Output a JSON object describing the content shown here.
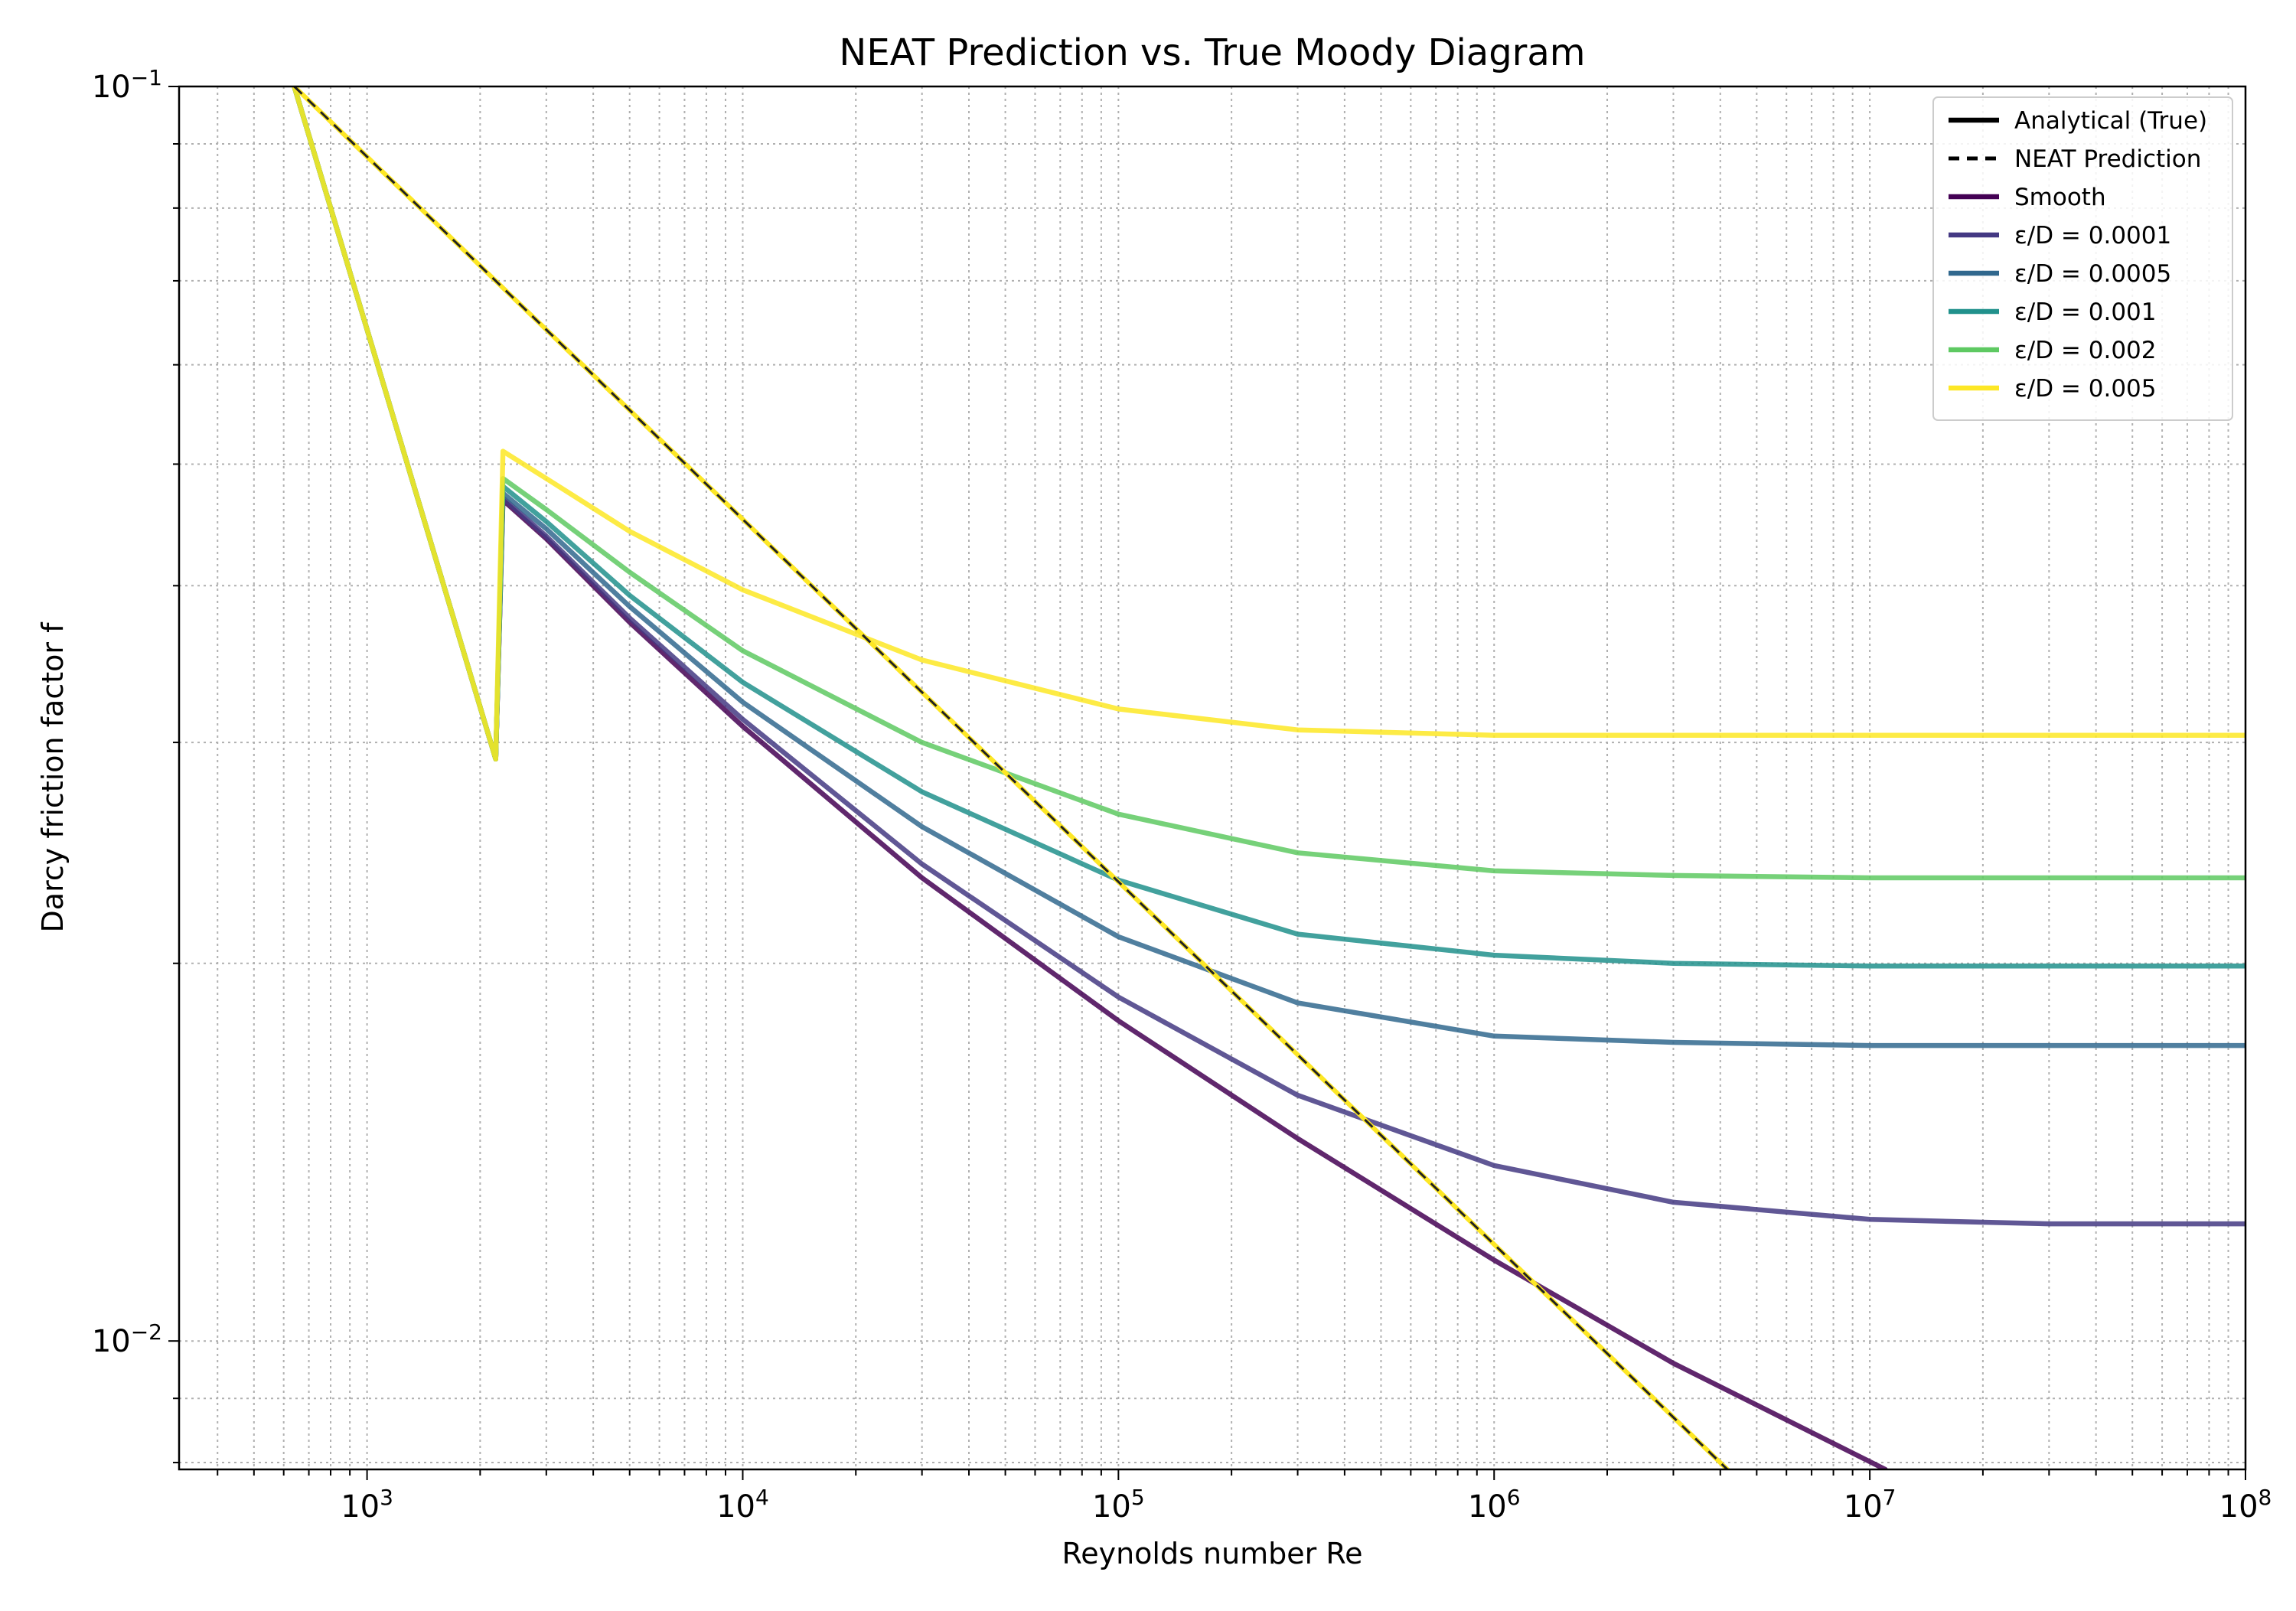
{
  "chart_data": {
    "type": "line",
    "title": "NEAT Prediction vs. True Moody Diagram",
    "xlabel": "Reynolds number Re",
    "ylabel": "Darcy friction factor f",
    "xscale": "log",
    "yscale": "log",
    "xlim": [
      316,
      100000000
    ],
    "ylim": [
      0.0079,
      0.1
    ],
    "grid": true,
    "legend_position": "top-right",
    "x_tick_labels": [
      {
        "value": 1000,
        "base": "10",
        "exp": "3"
      },
      {
        "value": 10000,
        "base": "10",
        "exp": "4"
      },
      {
        "value": 100000,
        "base": "10",
        "exp": "5"
      },
      {
        "value": 1000000,
        "base": "10",
        "exp": "6"
      },
      {
        "value": 10000000,
        "base": "10",
        "exp": "7"
      },
      {
        "value": 100000000,
        "base": "10",
        "exp": "8"
      }
    ],
    "y_tick_labels": [
      {
        "value": 0.1,
        "base": "10",
        "exp": "−1"
      },
      {
        "value": 0.01,
        "base": "10",
        "exp": "−2"
      }
    ],
    "legend": [
      {
        "label": "Analytical (True)",
        "style": "solid",
        "color": "#000000"
      },
      {
        "label": "NEAT Prediction",
        "style": "dashed",
        "color": "#000000"
      },
      {
        "label": "Smooth",
        "style": "solid",
        "color": "#440154"
      },
      {
        "label": "ε/D = 0.0001",
        "style": "solid",
        "color": "#443983"
      },
      {
        "label": "ε/D = 0.0005",
        "style": "solid",
        "color": "#31688e"
      },
      {
        "label": "ε/D = 0.001",
        "style": "solid",
        "color": "#21918c"
      },
      {
        "label": "ε/D = 0.002",
        "style": "solid",
        "color": "#5ec962"
      },
      {
        "label": "ε/D = 0.005",
        "style": "solid",
        "color": "#fde725"
      }
    ],
    "series": [
      {
        "name": "Smooth",
        "style": "solid",
        "color": "#440154",
        "x": [
          640,
          2200,
          2300,
          3000,
          5000,
          10000,
          30000,
          100000,
          300000,
          1000000,
          3000000,
          11000000
        ],
        "y": [
          0.1,
          0.0291,
          0.0468,
          0.0436,
          0.0374,
          0.0309,
          0.0234,
          0.018,
          0.0145,
          0.0116,
          0.0096,
          0.0079
        ]
      },
      {
        "name": "ε/D = 0.0001",
        "style": "solid",
        "color": "#443983",
        "x": [
          640,
          2200,
          2300,
          3000,
          5000,
          10000,
          30000,
          100000,
          300000,
          1000000,
          3000000,
          10000000,
          30000000,
          100000000
        ],
        "y": [
          0.1,
          0.0291,
          0.047,
          0.0438,
          0.0377,
          0.0313,
          0.024,
          0.0188,
          0.0157,
          0.0138,
          0.0129,
          0.0125,
          0.0124,
          0.0124
        ]
      },
      {
        "name": "ε/D = 0.0005",
        "style": "solid",
        "color": "#31688e",
        "x": [
          640,
          2200,
          2300,
          3000,
          5000,
          10000,
          30000,
          100000,
          300000,
          1000000,
          3000000,
          10000000,
          30000000,
          100000000
        ],
        "y": [
          0.1,
          0.0291,
          0.0474,
          0.0444,
          0.0385,
          0.0323,
          0.0257,
          0.021,
          0.0186,
          0.0175,
          0.0173,
          0.0172,
          0.0172,
          0.0172
        ]
      },
      {
        "name": "ε/D = 0.001",
        "style": "solid",
        "color": "#21918c",
        "x": [
          640,
          2200,
          2300,
          3000,
          5000,
          10000,
          30000,
          100000,
          300000,
          1000000,
          3000000,
          10000000,
          30000000,
          100000000
        ],
        "y": [
          0.1,
          0.0291,
          0.048,
          0.045,
          0.0393,
          0.0335,
          0.0274,
          0.0233,
          0.0211,
          0.0203,
          0.02,
          0.0199,
          0.0199,
          0.0199
        ]
      },
      {
        "name": "ε/D = 0.002",
        "style": "solid",
        "color": "#5ec962",
        "x": [
          640,
          2200,
          2300,
          3000,
          5000,
          10000,
          30000,
          100000,
          300000,
          1000000,
          3000000,
          10000000,
          30000000,
          100000000
        ],
        "y": [
          0.1,
          0.0291,
          0.0487,
          0.046,
          0.041,
          0.0355,
          0.03,
          0.0263,
          0.0245,
          0.0237,
          0.0235,
          0.0234,
          0.0234,
          0.0234
        ]
      },
      {
        "name": "ε/D = 0.005",
        "style": "solid",
        "color": "#fde725",
        "x": [
          640,
          2200,
          2300,
          3000,
          5000,
          10000,
          30000,
          100000,
          300000,
          1000000,
          3000000,
          10000000,
          30000000,
          100000000
        ],
        "y": [
          0.1,
          0.0291,
          0.0512,
          0.0487,
          0.0442,
          0.0397,
          0.0349,
          0.0319,
          0.0307,
          0.0304,
          0.0304,
          0.0304,
          0.0304,
          0.0304
        ]
      },
      {
        "name": "NEAT Prediction",
        "style": "dashed",
        "color": "#fde725",
        "x": [
          640,
          5000000
        ],
        "y": [
          0.1,
          0.0075
        ]
      }
    ]
  }
}
